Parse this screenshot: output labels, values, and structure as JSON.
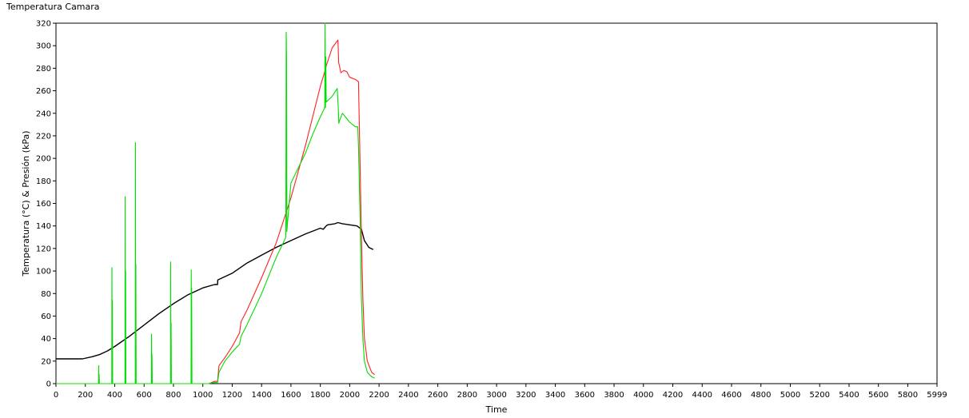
{
  "chart_data": {
    "type": "line",
    "title": "Temperatura Camara",
    "xlabel": "Time",
    "ylabel": "Temperatura (°C) & Presión (kPa)",
    "xlim": [
      0,
      5999
    ],
    "ylim": [
      0,
      320
    ],
    "x_ticks": [
      0,
      200,
      400,
      600,
      800,
      1000,
      1200,
      1400,
      1600,
      1800,
      2000,
      2200,
      2400,
      2600,
      2800,
      3000,
      3200,
      3400,
      3600,
      3800,
      4000,
      4200,
      4400,
      4600,
      4800,
      5000,
      5200,
      5400,
      5600,
      5800,
      5999
    ],
    "y_ticks": [
      0,
      20,
      40,
      60,
      80,
      100,
      120,
      140,
      160,
      180,
      200,
      220,
      240,
      260,
      280,
      300,
      320
    ],
    "grid": false,
    "legend": "none",
    "series": [
      {
        "color": "#000000",
        "x": [
          0,
          180,
          250,
          300,
          350,
          400,
          500,
          600,
          700,
          800,
          900,
          1000,
          1080,
          1100,
          1102,
          1200,
          1300,
          1400,
          1500,
          1600,
          1700,
          1800,
          1820,
          1840,
          1850,
          1900,
          1920,
          1950,
          2000,
          2050,
          2080,
          2100,
          2130,
          2160
        ],
        "values": [
          22,
          22,
          24,
          26,
          29,
          33,
          42,
          52,
          62,
          71,
          79,
          85,
          88,
          88,
          92,
          98,
          107,
          114,
          121,
          127,
          133,
          138,
          137,
          140,
          141,
          142,
          143,
          142,
          141,
          140,
          137,
          127,
          121,
          119
        ]
      },
      {
        "color": "#ff2020",
        "x": [
          0,
          1040,
          1080,
          1100,
          1110,
          1150,
          1200,
          1250,
          1260,
          1300,
          1400,
          1500,
          1600,
          1700,
          1750,
          1800,
          1830,
          1840,
          1880,
          1920,
          1925,
          1940,
          1960,
          1980,
          2000,
          2040,
          2060,
          2080,
          2090,
          2100,
          2120,
          2150,
          2170
        ],
        "values": [
          0,
          0,
          2,
          2,
          16,
          23,
          33,
          45,
          55,
          65,
          94,
          125,
          165,
          212,
          238,
          264,
          277,
          282,
          298,
          305,
          285,
          276,
          278,
          277,
          272,
          270,
          268,
          130,
          75,
          40,
          20,
          10,
          8
        ]
      },
      {
        "color": "#00dd00",
        "x": [
          0,
          290,
          291,
          293,
          294,
          296,
          380,
          381,
          383,
          384,
          386,
          470,
          471,
          473,
          474,
          476,
          540,
          541,
          543,
          544,
          546,
          650,
          651,
          653,
          654,
          656,
          780,
          781,
          783,
          784,
          786,
          920,
          921,
          923,
          924,
          926,
          1040,
          1080,
          1100,
          1110,
          1150,
          1200,
          1250,
          1260,
          1300,
          1400,
          1500,
          1565,
          1568,
          1570,
          1572,
          1575,
          1600,
          1700,
          1750,
          1800,
          1830,
          1832,
          1835,
          1837,
          1840,
          1880,
          1915,
          1922,
          1926,
          1930,
          1950,
          1970,
          2000,
          2040,
          2055,
          2060,
          2070,
          2080,
          2090,
          2100,
          2120,
          2150,
          2170
        ],
        "values": [
          0,
          0,
          16,
          0,
          8,
          0,
          0,
          103,
          0,
          74,
          0,
          0,
          166,
          0,
          100,
          0,
          0,
          214,
          0,
          106,
          0,
          0,
          44,
          0,
          26,
          0,
          0,
          108,
          0,
          54,
          0,
          0,
          101,
          0,
          85,
          0,
          0,
          1,
          1,
          10,
          20,
          28,
          35,
          42,
          52,
          80,
          112,
          130,
          312,
          290,
          135,
          140,
          178,
          205,
          222,
          237,
          245,
          320,
          245,
          290,
          250,
          255,
          262,
          245,
          231,
          233,
          240,
          237,
          232,
          228,
          228,
          210,
          150,
          75,
          40,
          20,
          10,
          6,
          5
        ]
      }
    ]
  }
}
